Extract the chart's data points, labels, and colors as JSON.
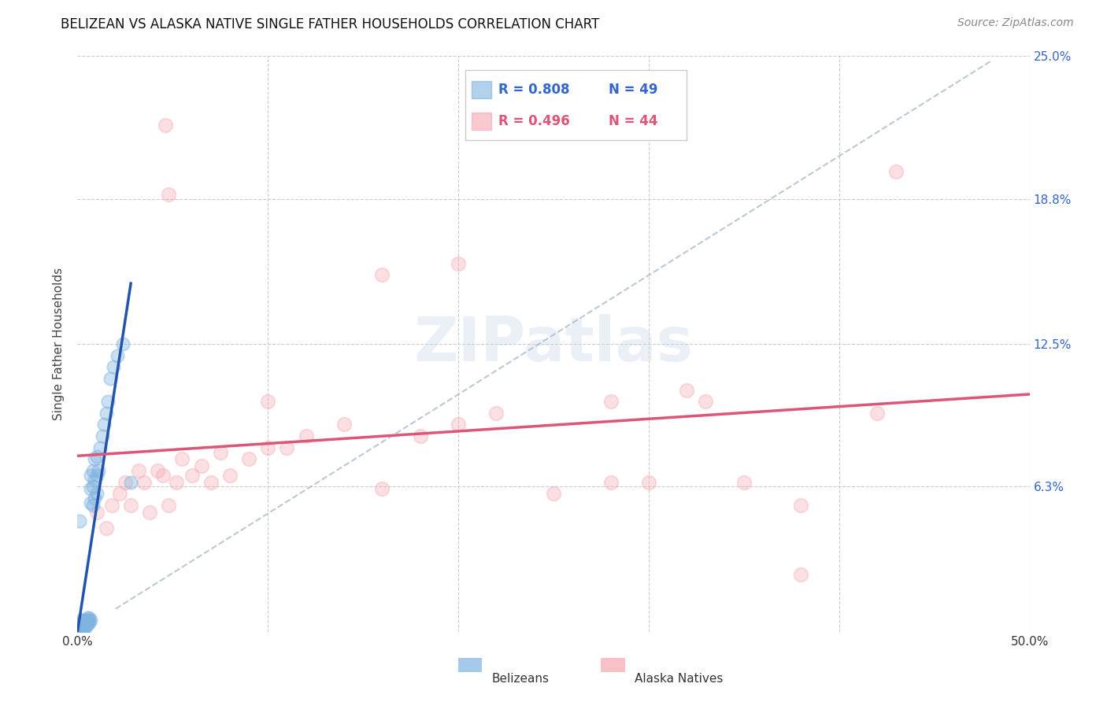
{
  "title": "BELIZEAN VS ALASKA NATIVE SINGLE FATHER HOUSEHOLDS CORRELATION CHART",
  "source": "Source: ZipAtlas.com",
  "ylabel": "Single Father Households",
  "xlim": [
    0,
    0.5
  ],
  "ylim": [
    0,
    0.25
  ],
  "grid_color": "#cccccc",
  "background_color": "#ffffff",
  "belizean_color": "#7fb3e0",
  "alaska_color": "#f4a7b0",
  "belizean_trend_color": "#2255aa",
  "alaska_trend_color": "#dd5577",
  "diag_color": "#aabbcc",
  "belizean_R": 0.808,
  "belizean_N": 49,
  "alaska_R": 0.496,
  "alaska_N": 44,
  "watermark": "ZIPatlas",
  "belizean_x": [
    0.001,
    0.001,
    0.001,
    0.002,
    0.002,
    0.002,
    0.002,
    0.002,
    0.003,
    0.003,
    0.003,
    0.003,
    0.003,
    0.004,
    0.004,
    0.004,
    0.004,
    0.005,
    0.005,
    0.005,
    0.005,
    0.006,
    0.006,
    0.006,
    0.007,
    0.007,
    0.007,
    0.007,
    0.008,
    0.008,
    0.008,
    0.009,
    0.009,
    0.009,
    0.01,
    0.01,
    0.01,
    0.011,
    0.012,
    0.013,
    0.014,
    0.015,
    0.016,
    0.017,
    0.019,
    0.021,
    0.024,
    0.028,
    0.001
  ],
  "belizean_y": [
    0.001,
    0.002,
    0.003,
    0.001,
    0.002,
    0.003,
    0.004,
    0.005,
    0.001,
    0.002,
    0.003,
    0.004,
    0.005,
    0.002,
    0.003,
    0.004,
    0.005,
    0.003,
    0.004,
    0.005,
    0.006,
    0.004,
    0.005,
    0.006,
    0.005,
    0.056,
    0.062,
    0.068,
    0.055,
    0.063,
    0.07,
    0.058,
    0.066,
    0.075,
    0.06,
    0.068,
    0.076,
    0.07,
    0.08,
    0.085,
    0.09,
    0.095,
    0.1,
    0.11,
    0.115,
    0.12,
    0.125,
    0.065,
    0.048
  ],
  "alaska_x": [
    0.01,
    0.015,
    0.018,
    0.022,
    0.025,
    0.028,
    0.032,
    0.035,
    0.038,
    0.042,
    0.045,
    0.048,
    0.052,
    0.055,
    0.06,
    0.065,
    0.07,
    0.075,
    0.08,
    0.09,
    0.1,
    0.11,
    0.12,
    0.14,
    0.16,
    0.18,
    0.2,
    0.22,
    0.25,
    0.28,
    0.32,
    0.35,
    0.38,
    0.42,
    0.046,
    0.048,
    0.2,
    0.33,
    0.43,
    0.1,
    0.28,
    0.3,
    0.16,
    0.38
  ],
  "alaska_y": [
    0.052,
    0.045,
    0.055,
    0.06,
    0.065,
    0.055,
    0.07,
    0.065,
    0.052,
    0.07,
    0.068,
    0.055,
    0.065,
    0.075,
    0.068,
    0.072,
    0.065,
    0.078,
    0.068,
    0.075,
    0.08,
    0.08,
    0.085,
    0.09,
    0.155,
    0.085,
    0.09,
    0.095,
    0.06,
    0.065,
    0.105,
    0.065,
    0.055,
    0.095,
    0.22,
    0.19,
    0.16,
    0.1,
    0.2,
    0.1,
    0.1,
    0.065,
    0.062,
    0.025
  ]
}
